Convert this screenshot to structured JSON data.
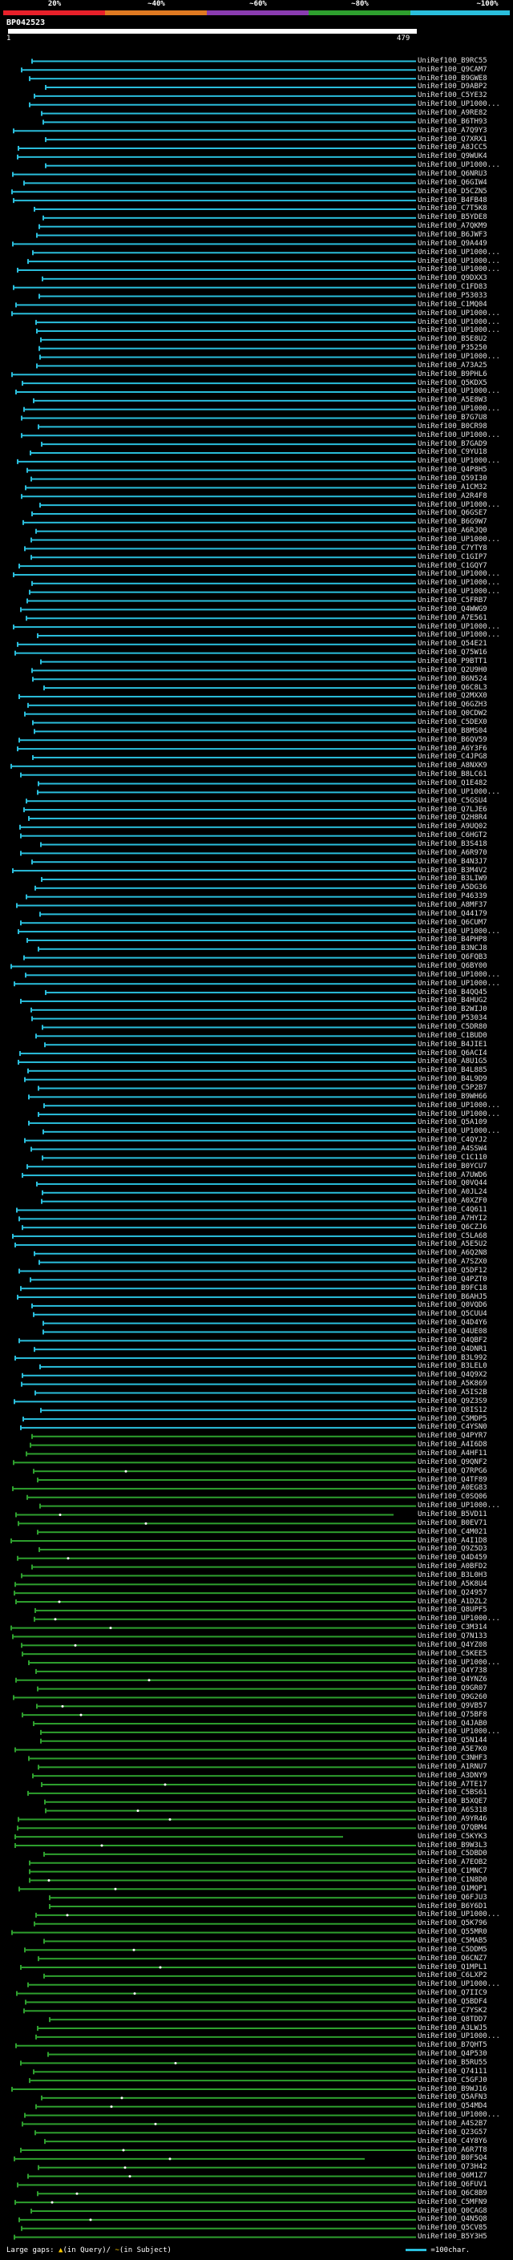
{
  "legend": {
    "labels": [
      "20%",
      "~40%",
      "~60%",
      "~80%",
      "~100%"
    ],
    "colors": [
      "#e8202a",
      "#e07a22",
      "#8a3cb0",
      "#2ea02e",
      "#2abedc"
    ]
  },
  "header": {
    "accession": "BP042523",
    "start": "1",
    "end": "479"
  },
  "footer": {
    "gaps_label": "Large gaps:",
    "query_marker": "▲",
    "query_text": "(in Query)/",
    "subject_marker": "~",
    "subject_text": "(in Subject)",
    "scale_text": "=100char."
  },
  "hits": [
    "UniRef100_B9RC55",
    "UniRef100_Q9CAM7",
    "UniRef100_B9GWE8",
    "UniRef100_D9ABP2",
    "UniRef100_C5YE32",
    "UniRef100_UP1000...",
    "UniRef100_A9RE82",
    "UniRef100_B6TH93",
    "UniRef100_A7Q9Y3",
    "UniRef100_Q7XRX1",
    "UniRef100_A8JCC5",
    "UniRef100_Q9WUK4",
    "UniRef100_UP1000...",
    "UniRef100_Q6NRU3",
    "UniRef100_Q6GIW4",
    "UniRef100_D5CZN5",
    "UniRef100_B4FB48",
    "UniRef100_C7T5K8",
    "UniRef100_B5YDE8",
    "UniRef100_A7QKM9",
    "UniRef100_B6JWF3",
    "UniRef100_Q9A449",
    "UniRef100_UP1000...",
    "UniRef100_UP1000...",
    "UniRef100_UP1000...",
    "UniRef100_Q9DXX3",
    "UniRef100_C1FD83",
    "UniRef100_P53033",
    "UniRef100_C1MQ04",
    "UniRef100_UP1000...",
    "UniRef100_UP1000...",
    "UniRef100_UP1000...",
    "UniRef100_B5E8U2",
    "UniRef100_P35250",
    "UniRef100_UP1000...",
    "UniRef100_A73A25",
    "UniRef100_B9PHL6",
    "UniRef100_Q5KDX5",
    "UniRef100_UP1000...",
    "UniRef100_A5E8W3",
    "UniRef100_UP1000...",
    "UniRef100_B7G7U8",
    "UniRef100_B0CR98",
    "UniRef100_UP1000...",
    "UniRef100_B7GAD9",
    "UniRef100_C9YU18",
    "UniRef100_UP1000...",
    "UniRef100_Q4P8H5",
    "UniRef100_Q59I30",
    "UniRef100_A1CM32",
    "UniRef100_A2R4F8",
    "UniRef100_UP1000...",
    "UniRef100_Q6GSE7",
    "UniRef100_B6G9W7",
    "UniRef100_A6RJQ0",
    "UniRef100_UP1000...",
    "UniRef100_C7YTY8",
    "UniRef100_C1GIP7",
    "UniRef100_C1GQY7",
    "UniRef100_UP1000...",
    "UniRef100_UP1000...",
    "UniRef100_UP1000...",
    "UniRef100_C5FRB7",
    "UniRef100_Q4WWG9",
    "UniRef100_A7E561",
    "UniRef100_UP1000...",
    "UniRef100_UP1000...",
    "UniRef100_Q54E21",
    "UniRef100_Q75W16",
    "UniRef100_P9BTT1",
    "UniRef100_Q2U9H0",
    "UniRef100_B6N524",
    "UniRef100_Q6C8L3",
    "UniRef100_Q2MXX0",
    "UniRef100_Q6GZH3",
    "UniRef100_Q0CDW2",
    "UniRef100_C5DEX0",
    "UniRef100_B8MS04",
    "UniRef100_B6QV59",
    "UniRef100_A6Y3F6",
    "UniRef100_C4JPG8",
    "UniRef100_A8NXK9",
    "UniRef100_B8LC61",
    "UniRef100_Q1E482",
    "UniRef100_UP1000...",
    "UniRef100_C5GSU4",
    "UniRef100_Q7LJE6",
    "UniRef100_Q2H8R4",
    "UniRef100_A9UQ02",
    "UniRef100_C6HGT2",
    "UniRef100_B3S418",
    "UniRef100_A6R970",
    "UniRef100_B4N3J7",
    "UniRef100_B3M4V2",
    "UniRef100_B3LIW9",
    "UniRef100_A5DG36",
    "UniRef100_P46339",
    "UniRef100_A8MF37",
    "UniRef100_Q44179",
    "UniRef100_Q6CUM7",
    "UniRef100_UP1000...",
    "UniRef100_B4PHP8",
    "UniRef100_B3NCJ8",
    "UniRef100_Q6FQB3",
    "UniRef100_Q6BY00",
    "UniRef100_UP1000...",
    "UniRef100_UP1000...",
    "UniRef100_B4QQ45",
    "UniRef100_B4HUG2",
    "UniRef100_B2WIJ0",
    "UniRef100_P53034",
    "UniRef100_C5DR80",
    "UniRef100_C1BUD0",
    "UniRef100_B4JIE1",
    "UniRef100_Q6ACI4",
    "UniRef100_A8U1G5",
    "UniRef100_B4L885",
    "UniRef100_B4L9D9",
    "UniRef100_C5P2B7",
    "UniRef100_B9WH66",
    "UniRef100_UP1000...",
    "UniRef100_UP1000...",
    "UniRef100_Q5A109",
    "UniRef100_UP1000...",
    "UniRef100_C4QYJ2",
    "UniRef100_A4SSW4",
    "UniRef100_C1C110",
    "UniRef100_B0YCU7",
    "UniRef100_A7UWD6",
    "UniRef100_Q0VQ44",
    "UniRef100_A0JL24",
    "UniRef100_A0XZF0",
    "UniRef100_C4Q611",
    "UniRef100_A7HYI2",
    "UniRef100_Q6CZJ6",
    "UniRef100_C5LA68",
    "UniRef100_A5E5U2",
    "UniRef100_A6Q2N8",
    "UniRef100_A7SZX0",
    "UniRef100_Q5DF12",
    "UniRef100_Q4PZT0",
    "UniRef100_B9FC18",
    "UniRef100_B6AHJ5",
    "UniRef100_Q0VQD6",
    "UniRef100_Q5CUU4",
    "UniRef100_Q4D4Y6",
    "UniRef100_Q4UE08",
    "UniRef100_Q4QBF2",
    "UniRef100_Q4DNR1",
    "UniRef100_B3L992",
    "UniRef100_B3LEL0",
    "UniRef100_Q4Q9X2",
    "UniRef100_A5K869",
    "UniRef100_A5IS2B",
    "UniRef100_Q9Z3S9",
    "UniRef100_Q8IS12",
    "UniRef100_C5MDP5",
    "UniRef100_C4YSN0",
    "UniRef100_Q4PYR7",
    "UniRef100_A4I6D8",
    "UniRef100_A4HF11",
    "UniRef100_Q9QNF2",
    "UniRef100_Q7RPG6",
    "UniRef100_Q4TF89",
    "UniRef100_A0EG83",
    "UniRef100_C0SQ06",
    "UniRef100_UP1000...",
    "UniRef100_B5VD11",
    "UniRef100_B0EV71",
    "UniRef100_C4M021",
    "UniRef100_A4I1D8",
    "UniRef100_Q9Z5D3",
    "UniRef100_Q4D459",
    "UniRef100_A0BFD2",
    "UniRef100_B3L0H3",
    "UniRef100_A5K8U4",
    "UniRef100_Q24957",
    "UniRef100_A1DZL2",
    "UniRef100_Q8UPF5",
    "UniRef100_UP1000...",
    "UniRef100_C3M314",
    "UniRef100_Q7N133",
    "UniRef100_Q4YZ08",
    "UniRef100_C5KEE5",
    "UniRef100_UP1000...",
    "UniRef100_Q4Y738",
    "UniRef100_Q4YNZ6",
    "UniRef100_Q9GR07",
    "UniRef100_Q9G260",
    "UniRef100_Q9VB57",
    "UniRef100_Q75BF8",
    "UniRef100_Q4JAB0",
    "UniRef100_UP1000...",
    "UniRef100_Q5N144",
    "UniRef100_A5E7K0",
    "UniRef100_C3NHF3",
    "UniRef100_A1RNU7",
    "UniRef100_A3DNY9",
    "UniRef100_A7TE17",
    "UniRef100_C5BS61",
    "UniRef100_B5XQE7",
    "UniRef100_A6S318",
    "UniRef100_A9YR46",
    "UniRef100_Q7QBM4",
    "UniRef100_C5KYK3",
    "UniRef100_B9W3L3",
    "UniRef100_C5DBD0",
    "UniRef100_A7EOB2",
    "UniRef100_C1MNC7",
    "UniRef100_C1N8D0",
    "UniRef100_Q1MQP1",
    "UniRef100_Q6FJU3",
    "UniRef100_B6Y6D1",
    "UniRef100_UP1000...",
    "UniRef100_Q5K796",
    "UniRef100_Q55MR0",
    "UniRef100_C5MAB5",
    "UniRef100_C5DDM5",
    "UniRef100_Q6CNZ7",
    "UniRef100_Q1MPL1",
    "UniRef100_C6LXP2",
    "UniRef100_UP1000...",
    "UniRef100_Q7IIC9",
    "UniRef100_Q5BDF4",
    "UniRef100_C7YSK2",
    "UniRef100_Q8TDD7",
    "UniRef100_A3LWJ5",
    "UniRef100_UP1000...",
    "UniRef100_B7QHT5",
    "UniRef100_Q4P530",
    "UniRef100_B5RU55",
    "UniRef100_Q74111",
    "UniRef100_C5GFJ0",
    "UniRef100_B9WJ16",
    "UniRef100_Q5AFN3",
    "UniRef100_Q54MD4",
    "UniRef100_UP1000...",
    "UniRef100_A4S2B7",
    "UniRef100_Q23G57",
    "UniRef100_C4Y8Y6",
    "UniRef100_A6R7T8",
    "UniRef100_B0F5Q4",
    "UniRef100_Q73H42",
    "UniRef100_Q6M1Z7",
    "UniRef100_Q6FUV1",
    "UniRef100_Q6C8B9",
    "UniRef100_C5MFN9",
    "UniRef100_Q0CAG8",
    "UniRef100_Q4N5Q8",
    "UniRef100_Q5CV85",
    "UniRef100_B5Y3H5"
  ]
}
